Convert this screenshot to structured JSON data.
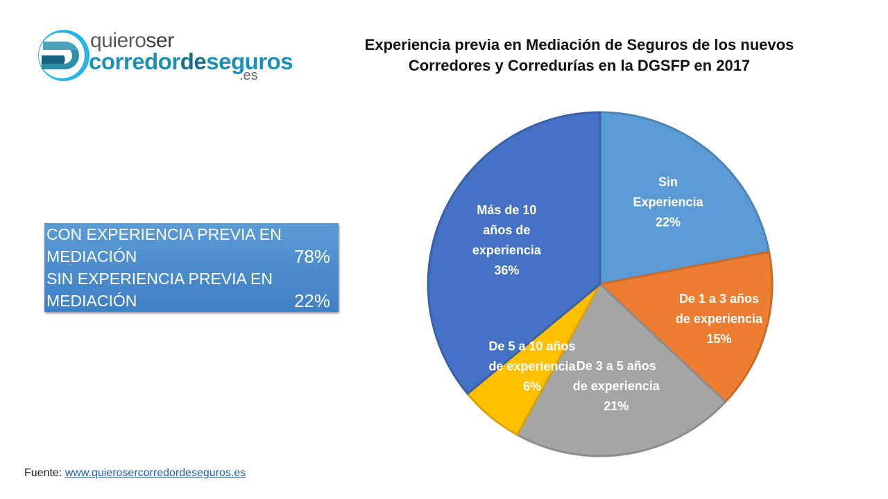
{
  "logo": {
    "line1_a": "quiero",
    "line1_b": "ser",
    "line2_a": "corredor",
    "line2_b": "de",
    "line2_c": "seguros",
    "line3": ".es"
  },
  "title": {
    "line1": "Experiencia previa en Mediación de Seguros de los nuevos",
    "line2": "Corredores y Corredurías en la DGSFP en 2017"
  },
  "summary": {
    "rows": [
      {
        "label_line1": "CON EXPERIENCIA PREVIA EN",
        "label_line2": "MEDIACIÓN",
        "value": "78%"
      },
      {
        "label_line1": "SIN EXPERIENCIA PREVIA EN",
        "label_line2": "MEDIACIÓN",
        "value": "22%"
      }
    ]
  },
  "source": {
    "label": "Fuente:",
    "link_text": "www.quierosercorredordeseguros.es"
  },
  "chart_data": {
    "type": "pie",
    "title": "Experiencia previa en Mediación de Seguros de los nuevos Corredores y Corredurías en la DGSFP en 2017",
    "start_angle": "12 o'clock, clockwise",
    "slices": [
      {
        "label": "Sin Experiencia",
        "label_lines": [
          "Sin",
          "Experiencia",
          "22%"
        ],
        "value": 22,
        "color": "#5b9bd5"
      },
      {
        "label": "De 1 a 3 años de experiencia",
        "label_lines": [
          "De 1 a 3 años",
          "de experiencia",
          "15%"
        ],
        "value": 15,
        "color": "#ed7d31"
      },
      {
        "label": "De 3 a 5 años de experiencia",
        "label_lines": [
          "De 3 a 5 años",
          "de experiencia",
          "21%"
        ],
        "value": 21,
        "color": "#a5a5a5"
      },
      {
        "label": "De 5 a 10 años de experiencia",
        "label_lines": [
          "De 5 a 10 años",
          "de experiencia",
          "6%"
        ],
        "value": 6,
        "color": "#ffc000"
      },
      {
        "label": "Más de 10 años de experiencia",
        "label_lines": [
          "Más de 10",
          "años de",
          "experiencia",
          "36%"
        ],
        "value": 36,
        "color": "#4472c4"
      }
    ],
    "legend": "none (data labels inside slices)"
  }
}
